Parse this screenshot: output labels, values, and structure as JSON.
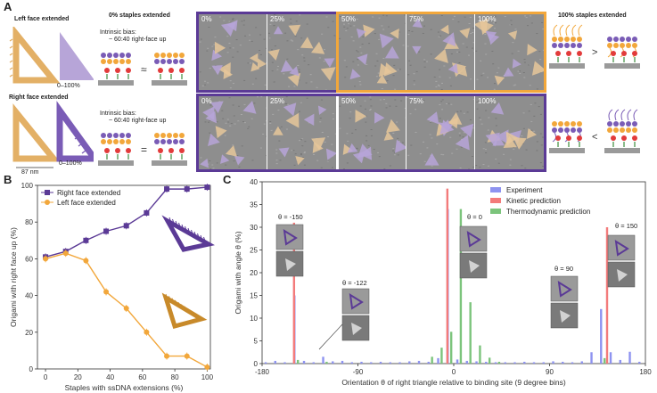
{
  "panel_a": {
    "letter": "A",
    "left_face_label": "Left face extended",
    "right_face_label": "Right face extended",
    "range_label_top": "0–100%",
    "range_label_bottom": "0–100%",
    "size_label": "87 nm",
    "zero_title": "0% staples extended",
    "hundred_title": "100% staples extended",
    "bias_top_line1": "Intrinsic bias:",
    "bias_top_line2": "~ 60:40 right-face up",
    "bias_bottom_line1": "Intrinsic bias:",
    "bias_bottom_line2": "~ 60:40 right-face up",
    "top_row_pcts": [
      "0%",
      "25%",
      "50%",
      "75%",
      "100%"
    ],
    "bottom_row_pcts": [
      "0%",
      "25%",
      "50%",
      "75%",
      "100%"
    ],
    "colors": {
      "purple": "#5b3a96",
      "orange": "#f2a73b",
      "tan": "#e6c79a",
      "lilac": "#b7a5d8"
    }
  },
  "panel_b": {
    "letter": "B",
    "chart_data": {
      "type": "line",
      "xlabel": "Staples with ssDNA extensions (%)",
      "ylabel": "Origami with right face up (%)",
      "xlim": [
        -5,
        102
      ],
      "ylim": [
        0,
        100
      ],
      "x_ticks": [
        0,
        20,
        40,
        60,
        80,
        100
      ],
      "y_ticks": [
        0,
        20,
        40,
        60,
        80,
        100
      ],
      "legend_position": "top-left",
      "series": [
        {
          "name": "Right face extended",
          "color": "#5b3a96",
          "x": [
            0,
            12.5,
            25,
            37.5,
            50,
            62.5,
            75,
            87.5,
            100
          ],
          "values": [
            61,
            64,
            70,
            75,
            78,
            85,
            98,
            98,
            99
          ]
        },
        {
          "name": "Left face extended",
          "color": "#f2a73b",
          "x": [
            0,
            12.5,
            25,
            37.5,
            50,
            62.5,
            75,
            87.5,
            100
          ],
          "values": [
            60,
            63,
            59,
            42,
            33,
            20,
            7,
            7,
            1
          ]
        }
      ]
    }
  },
  "panel_c": {
    "letter": "C",
    "chart_data": {
      "type": "bar",
      "xlabel": "Orientation θ of right triangle relative to binding site (9 degree bins)",
      "ylabel": "Origami with angle θ (%)",
      "xlim": [
        -180,
        180
      ],
      "ylim": [
        0,
        40
      ],
      "x_ticks": [
        -180,
        -90,
        0,
        90,
        180
      ],
      "y_ticks": [
        0,
        5,
        10,
        15,
        20,
        25,
        30,
        35,
        40
      ],
      "legend_position": "top-right",
      "series": [
        {
          "name": "Experiment",
          "color": "#8e93f0",
          "points": [
            [
              -175,
              0.3
            ],
            [
              -166,
              0.6
            ],
            [
              -157,
              0.3
            ],
            [
              -148,
              15
            ],
            [
              -139,
              0.6
            ],
            [
              -130,
              0.3
            ],
            [
              -121,
              1.5
            ],
            [
              -112,
              0.5
            ],
            [
              -103,
              0.6
            ],
            [
              -94,
              0.3
            ],
            [
              -85,
              0.4
            ],
            [
              -76,
              0.3
            ],
            [
              -67,
              0.4
            ],
            [
              -58,
              0.3
            ],
            [
              -49,
              0.3
            ],
            [
              -40,
              0.5
            ],
            [
              -31,
              0.6
            ],
            [
              -22,
              0.4
            ],
            [
              -13,
              1.2
            ],
            [
              -4,
              34
            ],
            [
              5,
              0.9
            ],
            [
              14,
              0.6
            ],
            [
              23,
              0.5
            ],
            [
              32,
              0.4
            ],
            [
              41,
              0.3
            ],
            [
              50,
              0.3
            ],
            [
              59,
              0.3
            ],
            [
              68,
              0.4
            ],
            [
              77,
              0.3
            ],
            [
              86,
              0.3
            ],
            [
              95,
              0.5
            ],
            [
              104,
              0.4
            ],
            [
              113,
              0.3
            ],
            [
              122,
              0.5
            ],
            [
              131,
              2.5
            ],
            [
              140,
              12
            ],
            [
              149,
              2.5
            ],
            [
              158,
              0.8
            ],
            [
              167,
              2.6
            ],
            [
              176,
              0.4
            ]
          ]
        },
        {
          "name": "Kinetic prediction",
          "color": "#f37b7b",
          "points": [
            [
              -150,
              31
            ],
            [
              -6,
              38.5
            ],
            [
              144,
              30
            ]
          ]
        },
        {
          "name": "Thermodynamic prediction",
          "color": "#7cc47c",
          "points": [
            [
              -148,
              0.8
            ],
            [
              -121,
              0.4
            ],
            [
              -22,
              1.5
            ],
            [
              -13,
              3.5
            ],
            [
              -4,
              7
            ],
            [
              5,
              34
            ],
            [
              14,
              13.5
            ],
            [
              23,
              4
            ],
            [
              32,
              1.3
            ],
            [
              41,
              0.4
            ],
            [
              140,
              1.2
            ]
          ]
        }
      ],
      "annotations": [
        "θ = -150",
        "θ = -122",
        "θ = 0",
        "θ = 90",
        "θ = 150"
      ]
    }
  }
}
